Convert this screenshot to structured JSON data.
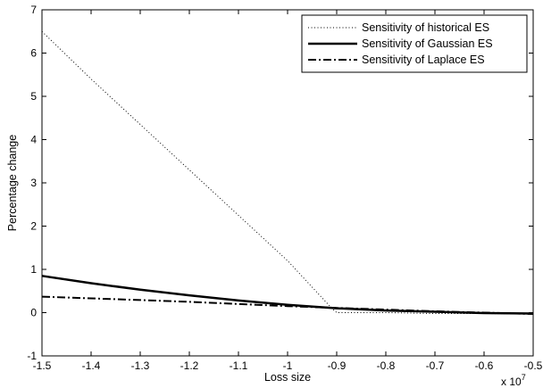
{
  "chart_data": {
    "type": "line",
    "title": "",
    "xlabel": "Loss size",
    "ylabel": "Percentage change",
    "x_exponent_base": "x 10",
    "x_exponent_power": "7",
    "xlim": [
      -1.5,
      -0.5
    ],
    "ylim": [
      -1,
      7
    ],
    "xticks": [
      -1.5,
      -1.4,
      -1.3,
      -1.2,
      -1.1,
      -1.0,
      -0.9,
      -0.8,
      -0.7,
      -0.6,
      -0.5
    ],
    "xtick_labels": [
      "-1.5",
      "-1.4",
      "-1.3",
      "-1.2",
      "-1.1",
      "-1",
      "-0.9",
      "-0.8",
      "-0.7",
      "-0.6",
      "-0.5"
    ],
    "yticks": [
      -1,
      0,
      1,
      2,
      3,
      4,
      5,
      6,
      7
    ],
    "ytick_labels": [
      "-1",
      "0",
      "1",
      "2",
      "3",
      "4",
      "5",
      "6",
      "7"
    ],
    "grid": false,
    "legend_position": "top-right",
    "series": [
      {
        "name": "Sensitivity of historical ES",
        "style": "dotted",
        "x": [
          -1.5,
          -1.4,
          -1.3,
          -1.2,
          -1.1,
          -1.0,
          -0.91,
          -0.9,
          -0.8,
          -0.7,
          -0.6,
          -0.5
        ],
        "y": [
          6.5,
          5.4,
          4.35,
          3.3,
          2.25,
          1.2,
          0.1,
          0.0,
          0.0,
          -0.02,
          -0.02,
          -0.03
        ]
      },
      {
        "name": "Sensitivity of Gaussian ES",
        "style": "solid",
        "x": [
          -1.5,
          -1.4,
          -1.3,
          -1.2,
          -1.1,
          -1.0,
          -0.9,
          -0.8,
          -0.7,
          -0.6,
          -0.5
        ],
        "y": [
          0.85,
          0.68,
          0.53,
          0.4,
          0.28,
          0.18,
          0.1,
          0.05,
          0.02,
          -0.01,
          -0.02
        ]
      },
      {
        "name": "Sensitivity of Laplace ES",
        "style": "dashdot",
        "x": [
          -1.5,
          -1.4,
          -1.3,
          -1.2,
          -1.1,
          -1.0,
          -0.9,
          -0.8,
          -0.7,
          -0.6,
          -0.5
        ],
        "y": [
          0.37,
          0.33,
          0.29,
          0.25,
          0.2,
          0.15,
          0.11,
          0.07,
          0.03,
          0.0,
          -0.03
        ]
      }
    ]
  }
}
